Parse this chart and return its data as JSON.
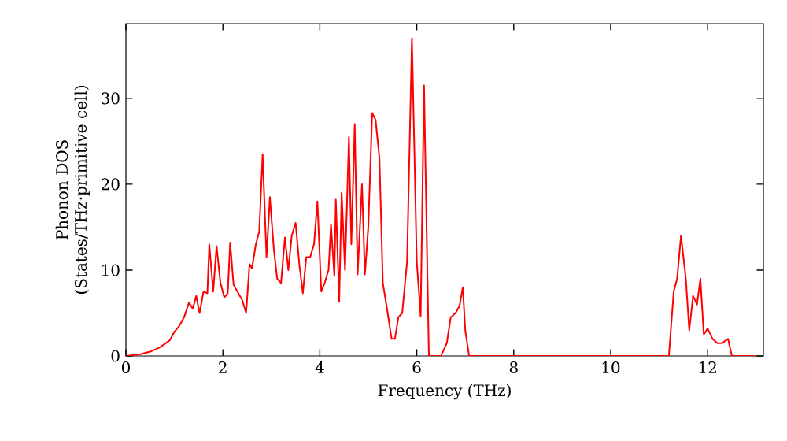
{
  "chart_data": {
    "type": "line",
    "xlabel": "Frequency (THz)",
    "ylabel": "Phonon DOS (States/THz·primitive cell)",
    "xlim": [
      0,
      13.15
    ],
    "ylim": [
      0,
      38.7
    ],
    "xticks": [
      0,
      2,
      4,
      6,
      8,
      10,
      12
    ],
    "yticks": [
      0,
      10,
      20,
      30
    ],
    "series": [
      {
        "color": "#ff0000",
        "x": [
          0,
          0.3,
          0.5,
          0.7,
          0.9,
          1.0,
          1.1,
          1.2,
          1.3,
          1.38,
          1.45,
          1.52,
          1.6,
          1.68,
          1.72,
          1.8,
          1.87,
          1.95,
          2.03,
          2.1,
          2.15,
          2.22,
          2.3,
          2.4,
          2.48,
          2.55,
          2.6,
          2.68,
          2.75,
          2.82,
          2.9,
          2.97,
          3.05,
          3.12,
          3.2,
          3.28,
          3.35,
          3.42,
          3.5,
          3.58,
          3.65,
          3.72,
          3.8,
          3.88,
          3.95,
          4.03,
          4.1,
          4.18,
          4.23,
          4.3,
          4.33,
          4.4,
          4.45,
          4.52,
          4.6,
          4.65,
          4.72,
          4.78,
          4.87,
          4.93,
          5.0,
          5.08,
          5.15,
          5.23,
          5.3,
          5.4,
          5.48,
          5.55,
          5.62,
          5.7,
          5.8,
          5.9,
          6.0,
          6.08,
          6.15,
          6.25,
          6.5,
          6.62,
          6.7,
          6.8,
          6.88,
          6.95,
          7.0,
          7.08,
          11.2,
          11.3,
          11.37,
          11.45,
          11.55,
          11.62,
          11.7,
          11.78,
          11.85,
          11.92,
          12.0,
          12.1,
          12.2,
          12.3,
          12.42,
          12.5,
          13.0
        ],
        "values": [
          0,
          0.2,
          0.5,
          1,
          1.8,
          2.8,
          3.5,
          4.5,
          6.2,
          5.5,
          7,
          5,
          7.5,
          7.3,
          13,
          7.5,
          12.8,
          8.5,
          6.8,
          7.3,
          13.2,
          8.3,
          7.5,
          6.5,
          5,
          10.7,
          10.2,
          13,
          14.5,
          23.5,
          11.5,
          18.5,
          12.5,
          9,
          8.5,
          13.8,
          10,
          14,
          15.5,
          10.5,
          7.3,
          11.5,
          11.5,
          13,
          18,
          7.5,
          8.5,
          10,
          15.3,
          9.3,
          18.2,
          6.3,
          19,
          10,
          25.5,
          13,
          27,
          9.5,
          20,
          9.5,
          15,
          28.3,
          27.5,
          23,
          8.5,
          5,
          2,
          2,
          4.5,
          5,
          11,
          37,
          11,
          4.6,
          31.5,
          0,
          0,
          1.5,
          4.5,
          5,
          5.8,
          8,
          3,
          0,
          0,
          7.5,
          9,
          14,
          9,
          3,
          7,
          6,
          9,
          2.5,
          3.2,
          2,
          1.5,
          1.5,
          2,
          0,
          0
        ]
      }
    ]
  }
}
